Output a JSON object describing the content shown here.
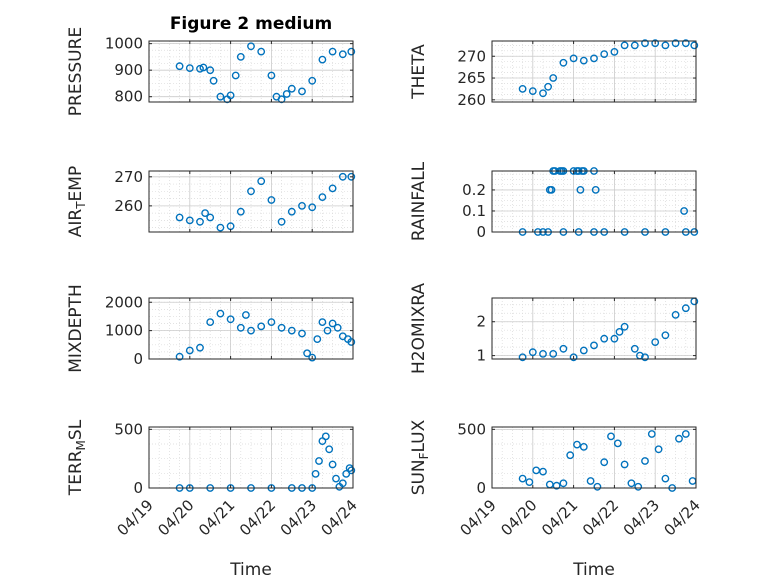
{
  "figure": {
    "title": "Figure 2 medium",
    "xlabel": "Time",
    "x_tick_labels": [
      "04/19",
      "04/20",
      "04/21",
      "04/22",
      "04/23",
      "04/24"
    ]
  },
  "colors": {
    "marker": "#0072BD",
    "axis": "#262626",
    "grid": "#d9d9d9",
    "background": "#ffffff"
  },
  "chart_data": [
    {
      "type": "scatter",
      "ylabel_parts": [
        {
          "t": "PRESSURE"
        }
      ],
      "xlim": [
        "04/19",
        "04/24"
      ],
      "ylim": [
        780,
        1010
      ],
      "yticks": [
        800,
        900,
        1000
      ],
      "grid": true,
      "series": [
        {
          "marker": "circle-open",
          "x": [
            "04/19 18:00",
            "04/20 00:00",
            "04/20 06:00",
            "04/20 08:00",
            "04/20 12:00",
            "04/20 14:00",
            "04/20 18:00",
            "04/20 22:00",
            "04/21 00:00",
            "04/21 03:00",
            "04/21 06:00",
            "04/21 12:00",
            "04/21 18:00",
            "04/22 00:00",
            "04/22 03:00",
            "04/22 06:00",
            "04/22 09:00",
            "04/22 12:00",
            "04/22 18:00",
            "04/23 00:00",
            "04/23 06:00",
            "04/23 12:00",
            "04/23 18:00",
            "04/23 23:00"
          ],
          "y": [
            915,
            908,
            905,
            910,
            900,
            860,
            800,
            790,
            805,
            880,
            950,
            990,
            970,
            880,
            800,
            790,
            810,
            830,
            820,
            860,
            940,
            970,
            960,
            970
          ]
        }
      ]
    },
    {
      "type": "scatter",
      "ylabel_parts": [
        {
          "t": "THETA"
        }
      ],
      "xlim": [
        "04/19",
        "04/24"
      ],
      "ylim": [
        259.5,
        273.5
      ],
      "yticks": [
        260,
        265,
        270
      ],
      "grid": true,
      "series": [
        {
          "marker": "circle-open",
          "x": [
            "04/19 18:00",
            "04/20 00:00",
            "04/20 06:00",
            "04/20 09:00",
            "04/20 12:00",
            "04/20 18:00",
            "04/21 00:00",
            "04/21 06:00",
            "04/21 12:00",
            "04/21 18:00",
            "04/22 00:00",
            "04/22 06:00",
            "04/22 12:00",
            "04/22 18:00",
            "04/23 00:00",
            "04/23 06:00",
            "04/23 12:00",
            "04/23 18:00",
            "04/23 23:00"
          ],
          "y": [
            262.5,
            262,
            261.5,
            263,
            265,
            268.5,
            269.5,
            269,
            269.5,
            270.5,
            271,
            272.5,
            272.5,
            273,
            273,
            272.5,
            273,
            273,
            272.5
          ]
        }
      ]
    },
    {
      "type": "scatter",
      "ylabel_parts": [
        {
          "t": "AIR"
        },
        {
          "t": "T",
          "sub": true
        },
        {
          "t": "EMP"
        }
      ],
      "xlim": [
        "04/19",
        "04/24"
      ],
      "ylim": [
        251,
        272
      ],
      "yticks": [
        260,
        270
      ],
      "grid": true,
      "series": [
        {
          "marker": "circle-open",
          "x": [
            "04/19 18:00",
            "04/20 00:00",
            "04/20 06:00",
            "04/20 09:00",
            "04/20 12:00",
            "04/20 18:00",
            "04/21 00:00",
            "04/21 06:00",
            "04/21 12:00",
            "04/21 18:00",
            "04/22 00:00",
            "04/22 06:00",
            "04/22 12:00",
            "04/22 18:00",
            "04/23 00:00",
            "04/23 06:00",
            "04/23 12:00",
            "04/23 18:00",
            "04/23 23:00"
          ],
          "y": [
            256,
            255,
            254.5,
            257.5,
            256,
            252.5,
            253,
            258,
            265,
            268.5,
            262,
            254.5,
            258,
            260,
            259.5,
            263,
            266,
            270,
            270
          ]
        }
      ]
    },
    {
      "type": "scatter",
      "ylabel_parts": [
        {
          "t": "RAINFALL"
        }
      ],
      "xlim": [
        "04/19",
        "04/24"
      ],
      "ylim": [
        0,
        0.29
      ],
      "yticks": [
        0,
        0.1,
        0.2
      ],
      "grid": true,
      "series": [
        {
          "marker": "circle-open",
          "x": [
            "04/19 18:00",
            "04/20 03:00",
            "04/20 06:00",
            "04/20 09:00",
            "04/20 18:00",
            "04/21 03:00",
            "04/21 12:00",
            "04/21 18:00",
            "04/22 06:00",
            "04/22 18:00",
            "04/23 06:00",
            "04/23 18:00",
            "04/23 23:00",
            "04/20 10:00",
            "04/20 11:00",
            "04/20 12:00",
            "04/20 13:00",
            "04/20 16:00",
            "04/20 17:00",
            "04/20 18:00",
            "04/21 00:00",
            "04/21 02:00",
            "04/21 03:00",
            "04/21 04:00",
            "04/21 05:00",
            "04/21 06:00",
            "04/21 12:00",
            "04/21 13:00",
            "04/23 17:00"
          ],
          "y": [
            0,
            0,
            0,
            0,
            0,
            0,
            0,
            0,
            0,
            0,
            0,
            0,
            0,
            0.2,
            0.2,
            0.29,
            0.29,
            0.29,
            0.29,
            0.29,
            0.29,
            0.29,
            0.29,
            0.2,
            0.29,
            0.29,
            0.29,
            0.2,
            0.1
          ]
        }
      ]
    },
    {
      "type": "scatter",
      "ylabel_parts": [
        {
          "t": "MIXDEPTH"
        }
      ],
      "xlim": [
        "04/19",
        "04/24"
      ],
      "ylim": [
        0,
        2150
      ],
      "yticks": [
        0,
        1000,
        2000
      ],
      "grid": true,
      "series": [
        {
          "marker": "circle-open",
          "x": [
            "04/19 18:00",
            "04/20 00:00",
            "04/20 06:00",
            "04/20 12:00",
            "04/20 18:00",
            "04/21 00:00",
            "04/21 06:00",
            "04/21 09:00",
            "04/21 12:00",
            "04/21 18:00",
            "04/22 00:00",
            "04/22 06:00",
            "04/22 12:00",
            "04/22 18:00",
            "04/22 21:00",
            "04/23 00:00",
            "04/23 03:00",
            "04/23 06:00",
            "04/23 09:00",
            "04/23 12:00",
            "04/23 15:00",
            "04/23 18:00",
            "04/23 21:00",
            "04/23 23:00"
          ],
          "y": [
            80,
            300,
            400,
            1300,
            1600,
            1400,
            1100,
            1550,
            1000,
            1150,
            1300,
            1100,
            1000,
            900,
            200,
            50,
            700,
            1300,
            1000,
            1250,
            1100,
            800,
            700,
            600
          ]
        }
      ]
    },
    {
      "type": "scatter",
      "ylabel_parts": [
        {
          "t": "H2OMIXRA"
        }
      ],
      "xlim": [
        "04/19",
        "04/24"
      ],
      "ylim": [
        0.9,
        2.7
      ],
      "yticks": [
        1,
        2
      ],
      "grid": true,
      "series": [
        {
          "marker": "circle-open",
          "x": [
            "04/19 18:00",
            "04/20 00:00",
            "04/20 06:00",
            "04/20 12:00",
            "04/20 18:00",
            "04/21 00:00",
            "04/21 06:00",
            "04/21 12:00",
            "04/21 18:00",
            "04/22 00:00",
            "04/22 03:00",
            "04/22 06:00",
            "04/22 12:00",
            "04/22 15:00",
            "04/22 18:00",
            "04/23 00:00",
            "04/23 06:00",
            "04/23 12:00",
            "04/23 18:00",
            "04/23 23:00"
          ],
          "y": [
            0.95,
            1.1,
            1.05,
            1.05,
            1.2,
            0.95,
            1.15,
            1.3,
            1.5,
            1.5,
            1.7,
            1.85,
            1.2,
            1.0,
            0.95,
            1.4,
            1.6,
            2.2,
            2.4,
            2.6
          ]
        }
      ]
    },
    {
      "type": "scatter",
      "ylabel_parts": [
        {
          "t": "TERR"
        },
        {
          "t": "M",
          "sub": true
        },
        {
          "t": "SL"
        }
      ],
      "xlim": [
        "04/19",
        "04/24"
      ],
      "ylim": [
        0,
        520
      ],
      "yticks": [
        0,
        500
      ],
      "grid": true,
      "series": [
        {
          "marker": "circle-open",
          "x": [
            "04/19 18:00",
            "04/20 00:00",
            "04/20 12:00",
            "04/21 00:00",
            "04/21 12:00",
            "04/22 00:00",
            "04/22 12:00",
            "04/22 18:00",
            "04/23 00:00",
            "04/23 02:00",
            "04/23 04:00",
            "04/23 06:00",
            "04/23 08:00",
            "04/23 10:00",
            "04/23 12:00",
            "04/23 14:00",
            "04/23 16:00",
            "04/23 18:00",
            "04/23 20:00",
            "04/23 22:00",
            "04/23 23:00"
          ],
          "y": [
            0,
            0,
            0,
            0,
            0,
            0,
            0,
            0,
            0,
            120,
            230,
            400,
            440,
            330,
            200,
            80,
            10,
            40,
            120,
            170,
            150
          ]
        }
      ]
    },
    {
      "type": "scatter",
      "ylabel_parts": [
        {
          "t": "SUN"
        },
        {
          "t": "F",
          "sub": true
        },
        {
          "t": "LUX"
        }
      ],
      "xlim": [
        "04/19",
        "04/24"
      ],
      "ylim": [
        0,
        520
      ],
      "yticks": [
        0,
        500
      ],
      "grid": true,
      "series": [
        {
          "marker": "circle-open",
          "x": [
            "04/19 18:00",
            "04/19 22:00",
            "04/20 02:00",
            "04/20 06:00",
            "04/20 10:00",
            "04/20 14:00",
            "04/20 18:00",
            "04/20 22:00",
            "04/21 02:00",
            "04/21 06:00",
            "04/21 10:00",
            "04/21 14:00",
            "04/21 18:00",
            "04/21 22:00",
            "04/22 02:00",
            "04/22 06:00",
            "04/22 10:00",
            "04/22 14:00",
            "04/22 18:00",
            "04/22 22:00",
            "04/23 02:00",
            "04/23 06:00",
            "04/23 10:00",
            "04/23 14:00",
            "04/23 18:00",
            "04/23 22:00"
          ],
          "y": [
            80,
            50,
            150,
            140,
            30,
            20,
            40,
            280,
            370,
            350,
            60,
            10,
            220,
            440,
            380,
            200,
            40,
            10,
            230,
            460,
            330,
            80,
            0,
            420,
            460,
            60
          ]
        }
      ]
    }
  ]
}
